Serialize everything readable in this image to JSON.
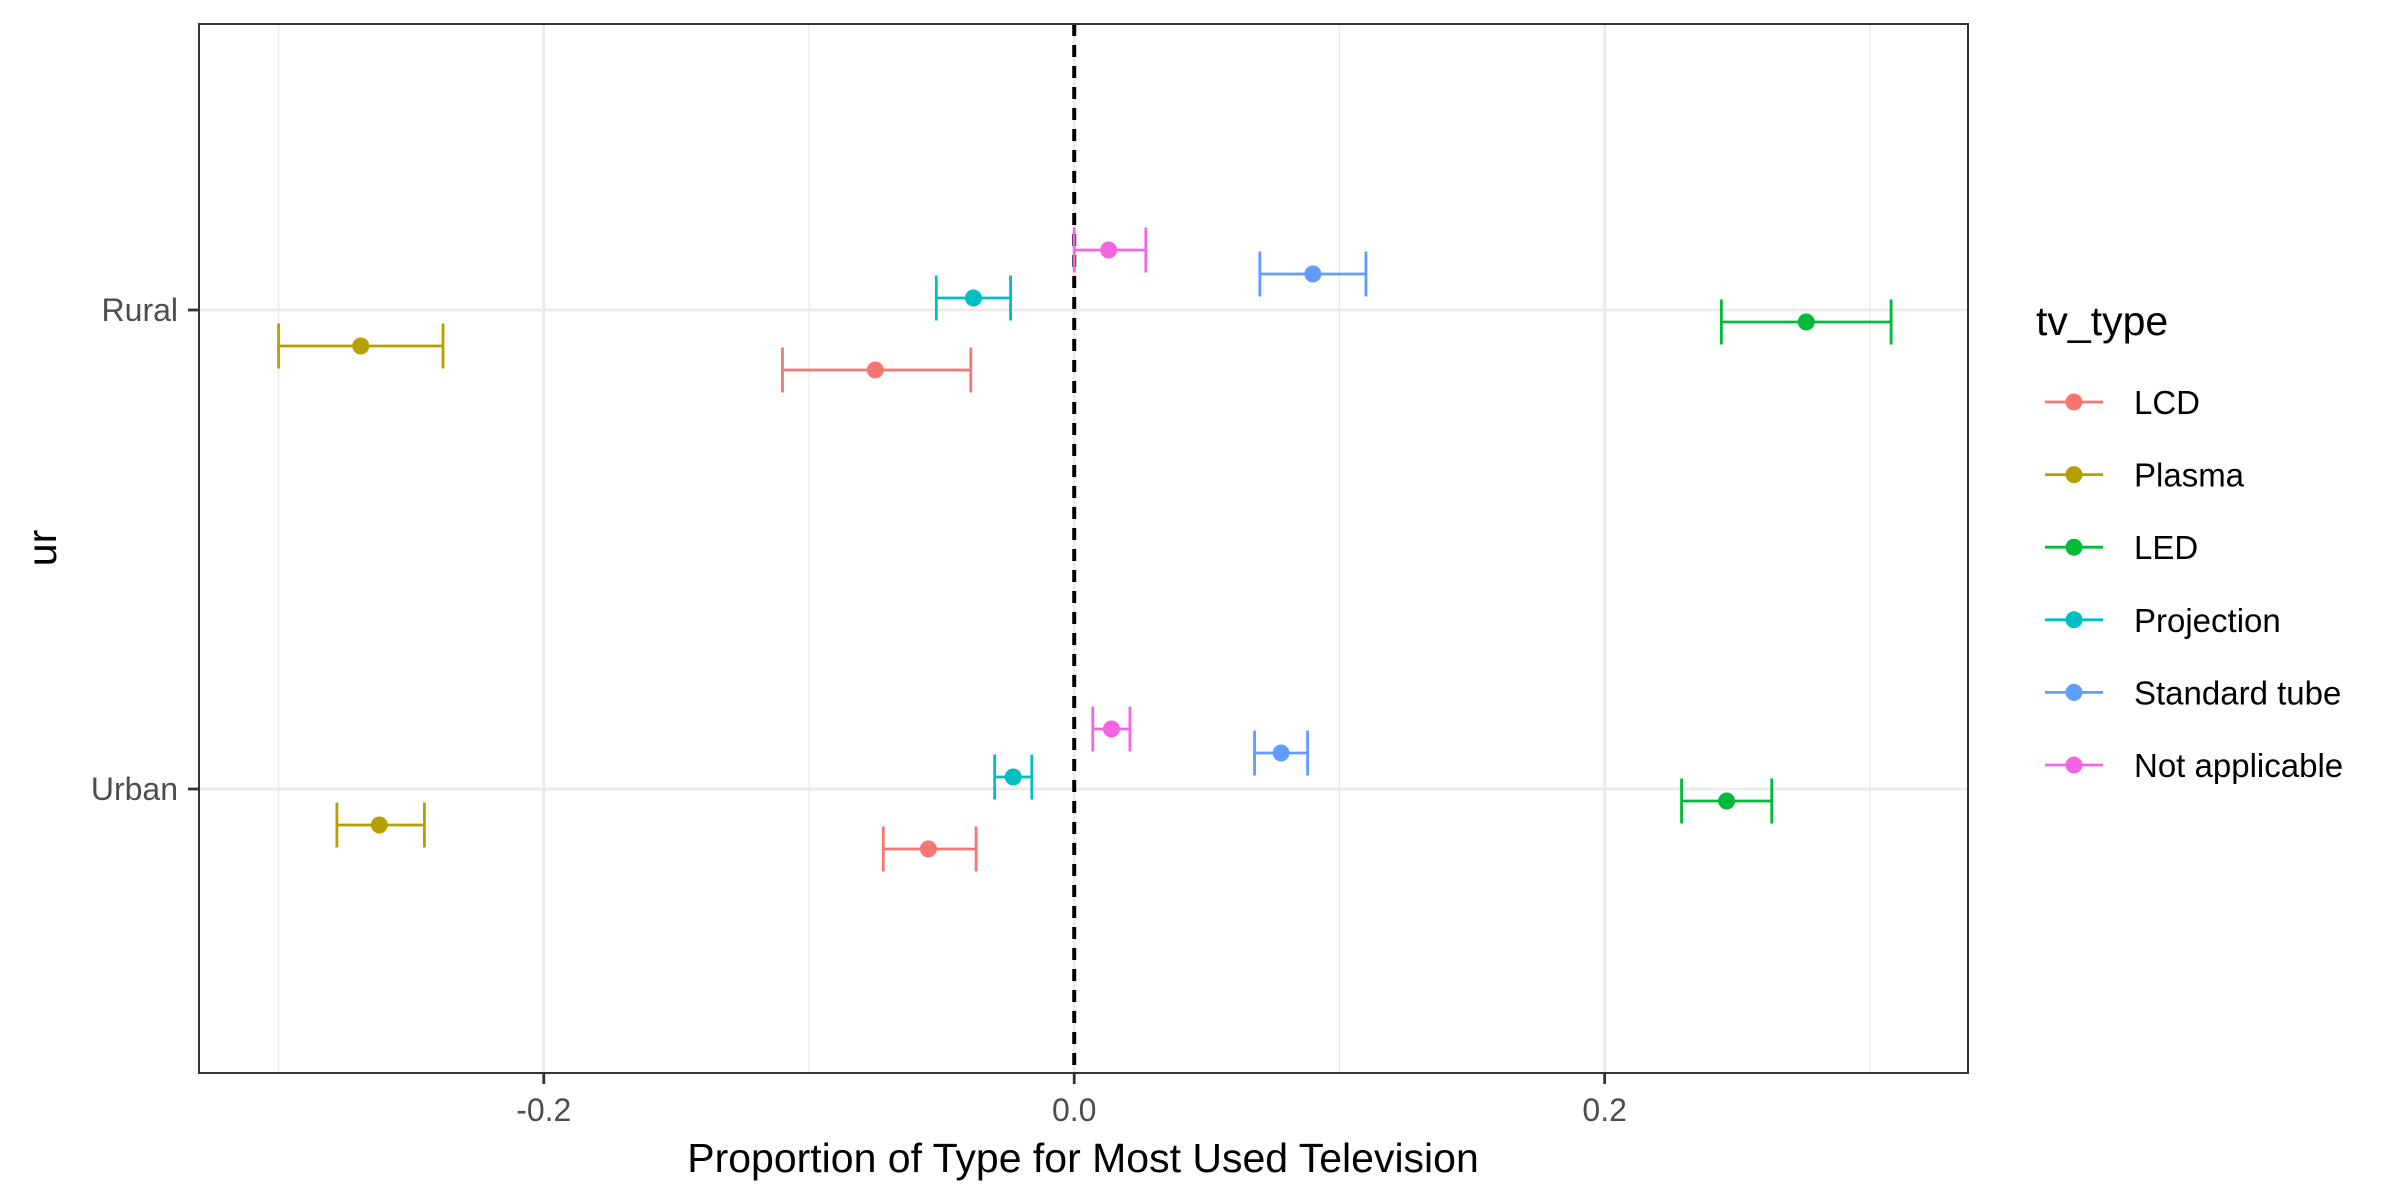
{
  "chart_data": {
    "type": "scatter",
    "subtype": "point-range-errorbar",
    "title": "",
    "xlabel": "Proportion of Type for Most Used Television",
    "ylabel": "ur",
    "xlim": [
      -0.33,
      0.337
    ],
    "x_ticks": [
      -0.2,
      0.0,
      0.2
    ],
    "x_tick_labels": [
      "-0.2",
      "0.0",
      "0.2"
    ],
    "categories": [
      "Rural",
      "Urban"
    ],
    "reference_line": {
      "x": 0,
      "style": "dashed"
    },
    "grid": true,
    "legend": {
      "title": "tv_type",
      "position": "right"
    },
    "series": [
      {
        "name": "LCD",
        "color": "#F8766D",
        "points": [
          {
            "category": "Rural",
            "x": -0.075,
            "xmin": -0.11,
            "xmax": -0.039
          },
          {
            "category": "Urban",
            "x": -0.055,
            "xmin": -0.072,
            "xmax": -0.037
          }
        ]
      },
      {
        "name": "Plasma",
        "color": "#B79F00",
        "points": [
          {
            "category": "Rural",
            "x": -0.269,
            "xmin": -0.3,
            "xmax": -0.238
          },
          {
            "category": "Urban",
            "x": -0.262,
            "xmin": -0.278,
            "xmax": -0.245
          }
        ]
      },
      {
        "name": "LED",
        "color": "#00BA38",
        "points": [
          {
            "category": "Rural",
            "x": 0.276,
            "xmin": 0.244,
            "xmax": 0.308
          },
          {
            "category": "Urban",
            "x": 0.246,
            "xmin": 0.229,
            "xmax": 0.263
          }
        ]
      },
      {
        "name": "Projection",
        "color": "#00BFC4",
        "points": [
          {
            "category": "Rural",
            "x": -0.038,
            "xmin": -0.052,
            "xmax": -0.024
          },
          {
            "category": "Urban",
            "x": -0.023,
            "xmin": -0.03,
            "xmax": -0.016
          }
        ]
      },
      {
        "name": "Standard tube",
        "color": "#619CFF",
        "points": [
          {
            "category": "Rural",
            "x": 0.09,
            "xmin": 0.07,
            "xmax": 0.11
          },
          {
            "category": "Urban",
            "x": 0.078,
            "xmin": 0.068,
            "xmax": 0.088
          }
        ]
      },
      {
        "name": "Not applicable",
        "color": "#F564E3",
        "points": [
          {
            "category": "Rural",
            "x": 0.013,
            "xmin": 0.0,
            "xmax": 0.027
          },
          {
            "category": "Urban",
            "x": 0.014,
            "xmin": 0.007,
            "xmax": 0.021
          }
        ]
      }
    ]
  }
}
